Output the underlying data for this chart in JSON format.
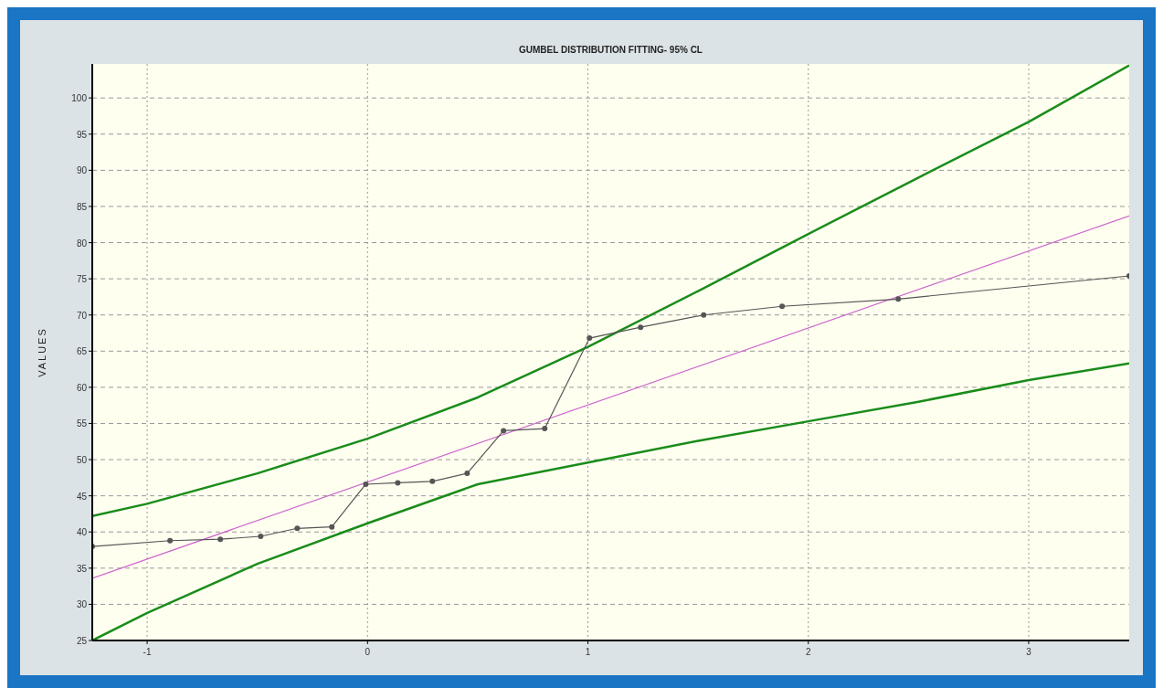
{
  "chart_data": {
    "type": "line",
    "title": "GUMBEL DISTRIBUTION FITTING- 95% CL",
    "ylabel": "VALUES",
    "xlim": [
      -1.249,
      3.456
    ],
    "xticks": [
      -1,
      0,
      1,
      2,
      3
    ],
    "ylim": [
      25,
      104.7
    ],
    "yticks": [
      25,
      30,
      35,
      40,
      45,
      50,
      55,
      60,
      65,
      70,
      75,
      80,
      85,
      90,
      95,
      100
    ],
    "grid": true,
    "series": [
      {
        "color": "#1a8c1a",
        "x": [
          -1.249,
          -1,
          -0.5,
          0,
          0.5,
          1,
          1.5,
          2,
          2.5,
          3,
          3.456
        ],
        "values": [
          42.2,
          43.9,
          48.1,
          52.9,
          58.6,
          65.6,
          73.3,
          81.2,
          89,
          96.7,
          104.5
        ]
      },
      {
        "color": "#1a8c1a",
        "x": [
          -1.249,
          -1,
          -0.5,
          0,
          0.5,
          1,
          1.5,
          2,
          2.5,
          3,
          3.456
        ],
        "values": [
          25,
          28.8,
          35.6,
          41.2,
          46.6,
          49.6,
          52.6,
          55.3,
          58,
          61,
          63.3
        ]
      },
      {
        "color": "#cc66cc",
        "x": [
          -1.249,
          3.456
        ],
        "values": [
          33.6,
          83.7
        ]
      },
      {
        "color": "#555555",
        "marker": "circle",
        "x": [
          -1.249,
          -0.896,
          -0.668,
          -0.485,
          -0.319,
          -0.162,
          -0.008,
          0.137,
          0.294,
          0.452,
          0.617,
          0.804,
          1.007,
          1.239,
          1.525,
          1.881,
          2.408,
          3.456
        ],
        "values": [
          38,
          38.8,
          39,
          39.4,
          40.5,
          40.7,
          46.6,
          46.8,
          47,
          48.1,
          54,
          54.3,
          66.8,
          68.3,
          70,
          71.2,
          72.2,
          75.4
        ]
      }
    ]
  }
}
